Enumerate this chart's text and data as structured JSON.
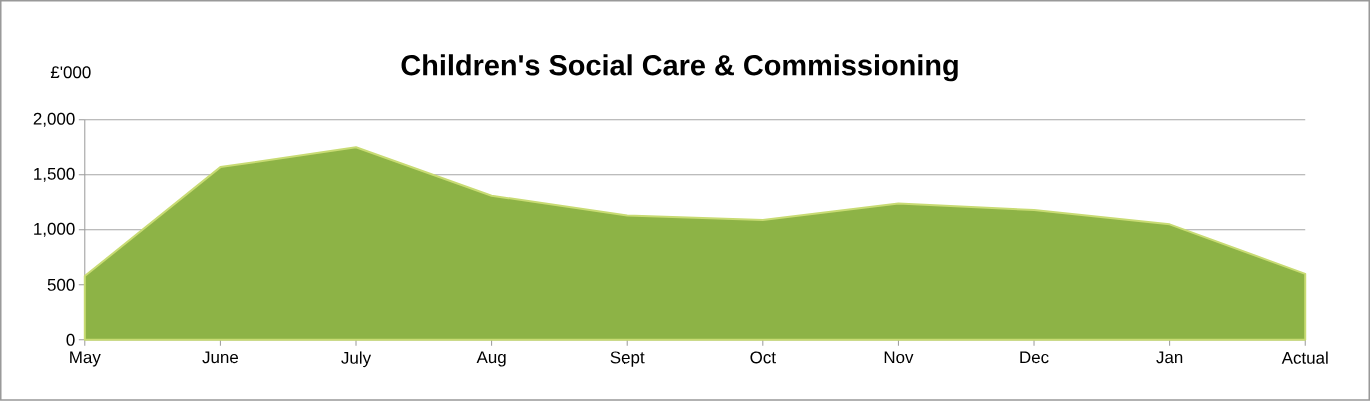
{
  "chart_data": {
    "type": "area",
    "title": "Children's Social Care & Commissioning",
    "ylabel": "£'000",
    "categories": [
      "May",
      "June",
      "July",
      "Aug",
      "Sept",
      "Oct",
      "Nov",
      "Dec",
      "Jan",
      "Actual"
    ],
    "values": [
      580,
      1570,
      1750,
      1310,
      1130,
      1090,
      1240,
      1180,
      1050,
      600
    ],
    "color": "#8db346",
    "ylim": [
      0,
      2000
    ],
    "yticks": [
      {
        "value": 0,
        "label": "0"
      },
      {
        "value": 500,
        "label": "500"
      },
      {
        "value": 1000,
        "label": "1,000"
      },
      {
        "value": 1500,
        "label": "1,500"
      },
      {
        "value": 2000,
        "label": "2,000"
      }
    ],
    "grid": "y"
  }
}
